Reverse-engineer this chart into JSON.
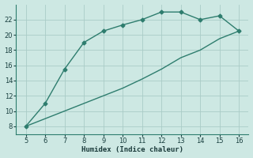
{
  "line1_x": [
    5,
    6,
    7,
    8,
    9,
    10,
    11,
    12,
    13,
    14,
    15,
    16
  ],
  "line1_y": [
    8.0,
    11.0,
    15.5,
    19.0,
    20.5,
    21.3,
    22.0,
    23.0,
    23.0,
    22.0,
    22.5,
    20.5
  ],
  "line2_x": [
    5,
    6,
    7,
    8,
    9,
    10,
    11,
    12,
    13,
    14,
    15,
    16
  ],
  "line2_y": [
    8.0,
    9.0,
    10.0,
    11.0,
    12.0,
    13.0,
    14.2,
    15.5,
    17.0,
    18.0,
    19.5,
    20.5
  ],
  "color": "#2e7d6e",
  "xlabel": "Humidex (Indice chaleur)",
  "xlim": [
    4.5,
    16.5
  ],
  "ylim": [
    7.0,
    24.0
  ],
  "xticks": [
    5,
    6,
    7,
    8,
    9,
    10,
    11,
    12,
    13,
    14,
    15,
    16
  ],
  "yticks": [
    8,
    10,
    12,
    14,
    16,
    18,
    20,
    22
  ],
  "bg_color": "#cde8e3",
  "grid_color": "#aaccc7",
  "marker": "D",
  "marker_size": 2.5,
  "line_width": 1.0
}
